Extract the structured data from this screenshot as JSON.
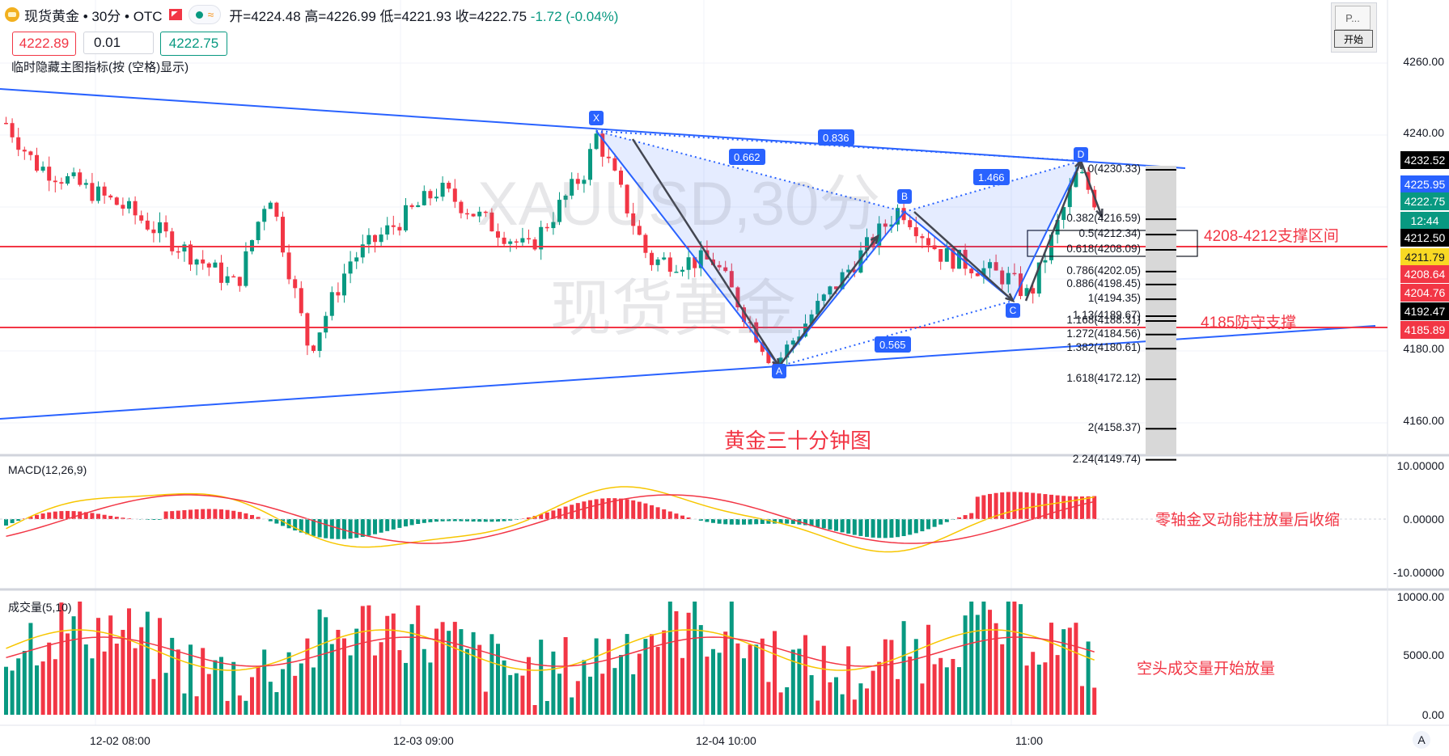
{
  "header": {
    "symbol": "现货黄金 • 30分 • OTC",
    "open": "开=4224.48",
    "high": "高=4226.99",
    "low": "低=4221.93",
    "close": "收=4222.75",
    "change": "-1.72 (-0.04%)",
    "sell_price": "4222.89",
    "quantity": "0.01",
    "buy_price": "4222.75",
    "hide_note": "临时隐藏主图指标(按 (空格)显示)",
    "start_panel_label": "P...",
    "start_button": "开始"
  },
  "watermark": {
    "line1": "XAUUSD,30分",
    "line2": "现货黄金"
  },
  "annotations": {
    "chart_title": "黄金三十分钟图",
    "support_zone": "4208-4212支撑区间",
    "defense_support": "4185防守支撑",
    "macd_note": "零轴金叉动能柱放量后收缩",
    "volume_note": "空头成交量开始放量"
  },
  "harmonic": {
    "points": [
      "X",
      "A",
      "B",
      "C",
      "D"
    ],
    "ratios": [
      "0.836",
      "0.662",
      "1.466",
      "0.565"
    ],
    "fib_levels": [
      {
        "label": "0(4230.33)",
        "price": 4230.33
      },
      {
        "label": "0.382(4216.59)",
        "price": 4216.59
      },
      {
        "label": "0.5(4212.34)",
        "price": 4212.34
      },
      {
        "label": "0.618(4208.09)",
        "price": 4208.09
      },
      {
        "label": "0.786(4202.05)",
        "price": 4202.05
      },
      {
        "label": "0.886(4198.45)",
        "price": 4198.45
      },
      {
        "label": "1(4194.35)",
        "price": 4194.35
      },
      {
        "label": "1.13(4189.67)",
        "price": 4189.67
      },
      {
        "label": "1.168(4188.31)",
        "price": 4188.31
      },
      {
        "label": "1.272(4184.56)",
        "price": 4184.56
      },
      {
        "label": "1.382(4180.61)",
        "price": 4180.61
      },
      {
        "label": "1.618(4172.12)",
        "price": 4172.12
      },
      {
        "label": "2(4158.37)",
        "price": 4158.37
      },
      {
        "label": "2.24(4149.74)",
        "price": 4149.74
      }
    ]
  },
  "price_axis": {
    "ticks": [
      "4260.00",
      "4240.00",
      "4180.00",
      "4160.00"
    ],
    "tags": [
      {
        "text": "4232.52",
        "color": "#000000"
      },
      {
        "text": "4225.95",
        "color": "#2962ff"
      },
      {
        "text": "4222.75",
        "color": "#089981"
      },
      {
        "text": "12:44",
        "color": "#089981"
      },
      {
        "text": "4212.50",
        "color": "#000000"
      },
      {
        "text": "4211.79",
        "color": "#f9d923"
      },
      {
        "text": "4208.64",
        "color": "#f23645"
      },
      {
        "text": "4204.76",
        "color": "#f23645"
      },
      {
        "text": "4192.47",
        "color": "#000000"
      },
      {
        "text": "4185.89",
        "color": "#f23645"
      }
    ]
  },
  "macd": {
    "title": "MACD(12,26,9)",
    "ticks": [
      "10.00000",
      "0.00000",
      "-10.00000"
    ]
  },
  "volume": {
    "title": "成交量(5,10)",
    "ticks": [
      "10000.00",
      "5000.00",
      "0.00"
    ]
  },
  "time_axis": {
    "labels": [
      "12-02 08:00",
      "12-03 09:00",
      "12-04 10:00",
      "11:00"
    ],
    "auto_button": "A"
  },
  "colors": {
    "up": "#089981",
    "down": "#f23645",
    "pattern": "#2962ff",
    "support_line": "#f23645"
  }
}
